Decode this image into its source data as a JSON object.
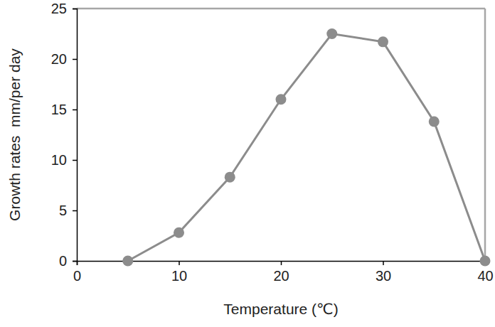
{
  "chart_data": {
    "type": "line",
    "x_label": "Temperature (℃)",
    "y_label": "Growth rates  mm/per day",
    "x": [
      5,
      10,
      15,
      20,
      25,
      30,
      35,
      40
    ],
    "values": [
      0,
      2.8,
      8.3,
      16,
      22.5,
      21.7,
      13.8,
      0
    ],
    "color": "#8c8c8c",
    "marker": "circle",
    "xlim": [
      0,
      40
    ],
    "ylim": [
      0,
      25
    ],
    "xticks": [
      0,
      10,
      20,
      30,
      40
    ],
    "yticks": [
      0,
      5,
      10,
      15,
      20,
      25
    ]
  }
}
